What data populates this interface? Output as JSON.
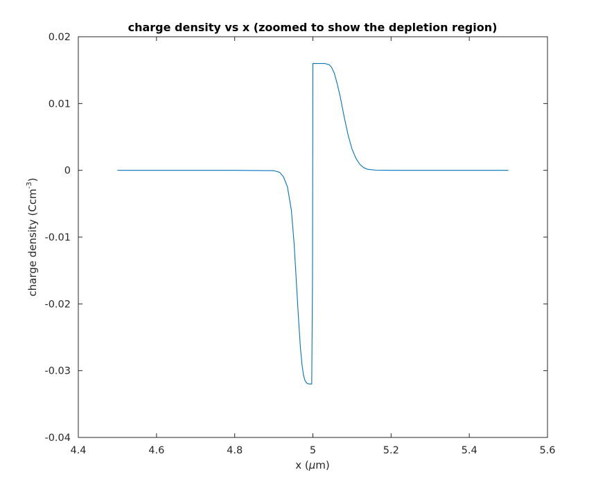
{
  "chart_data": {
    "type": "line",
    "title": "charge density vs x (zoomed to show the depletion region)",
    "xlabel": {
      "prefix": "x (",
      "mu": "μ",
      "suffix": "m)"
    },
    "ylabel": {
      "main": "charge density (Ccm",
      "sup": "-3",
      "close": ")"
    },
    "xlim": [
      4.4,
      5.6
    ],
    "ylim": [
      -0.04,
      0.02
    ],
    "x_ticks": [
      4.4,
      4.6,
      4.8,
      5.0,
      5.2,
      5.4,
      5.6
    ],
    "x_tick_labels": [
      "4.4",
      "4.6",
      "4.8",
      "5",
      "5.2",
      "5.4",
      "5.6"
    ],
    "y_ticks": [
      0.02,
      0.01,
      0,
      -0.01,
      -0.02,
      -0.03,
      -0.04
    ],
    "y_tick_labels": [
      "0.02",
      "0.01",
      "0",
      "-0.01",
      "-0.02",
      "-0.03",
      "-0.04"
    ],
    "grid": false,
    "legend": "none",
    "series": [
      {
        "color": "#0072BD",
        "x": [
          4.5,
          4.8,
          4.9,
          4.915,
          4.925,
          4.935,
          4.945,
          4.952,
          4.958,
          4.963,
          4.968,
          4.972,
          4.976,
          4.98,
          4.985,
          4.99,
          4.997,
          4.999,
          5.0,
          5.01,
          5.03,
          5.042,
          5.048,
          5.055,
          5.062,
          5.07,
          5.08,
          5.09,
          5.1,
          5.11,
          5.12,
          5.13,
          5.14,
          5.16,
          5.2,
          5.5
        ],
        "y": [
          0,
          0,
          -5e-05,
          -0.0003,
          -0.001,
          -0.0025,
          -0.006,
          -0.011,
          -0.017,
          -0.022,
          -0.0265,
          -0.029,
          -0.0307,
          -0.0315,
          -0.0319,
          -0.032,
          -0.032,
          -0.016,
          0.016,
          0.016,
          0.016,
          0.0158,
          0.0154,
          0.0145,
          0.013,
          0.011,
          0.008,
          0.0053,
          0.0032,
          0.0018,
          0.0009,
          0.0004,
          0.00015,
          3e-05,
          0,
          0
        ]
      }
    ]
  }
}
